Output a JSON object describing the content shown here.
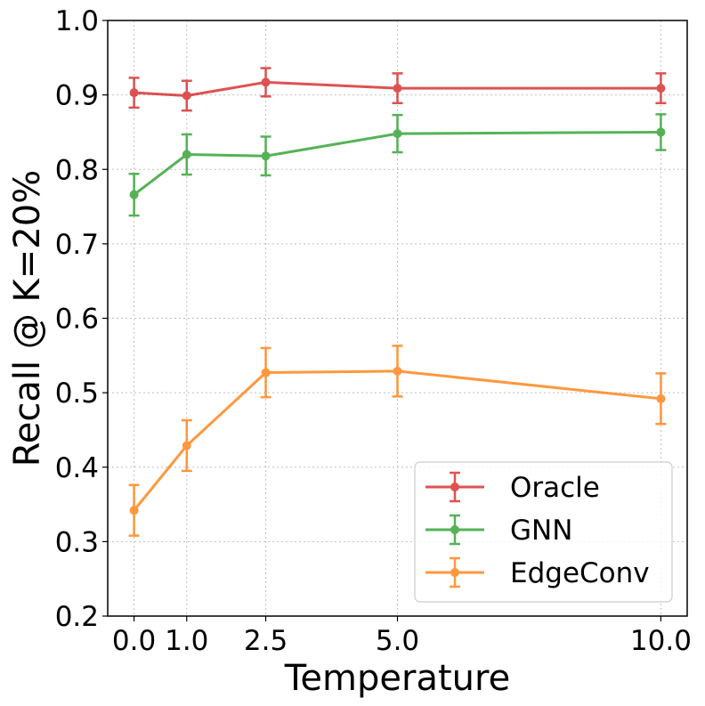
{
  "chart_data": {
    "type": "line",
    "title": "",
    "xlabel": "Temperature",
    "ylabel": "Recall @ K=20%",
    "x": [
      0.0,
      1.0,
      2.5,
      5.0,
      10.0
    ],
    "x_tick_labels": [
      "0.0",
      "1.0",
      "2.5",
      "5.0",
      "10.0"
    ],
    "xlim": [
      -0.5,
      10.5
    ],
    "ylim": [
      0.2,
      1.0
    ],
    "y_ticks": [
      0.2,
      0.3,
      0.4,
      0.5,
      0.6,
      0.7,
      0.8,
      0.9,
      1.0
    ],
    "y_tick_labels": [
      "0.2",
      "0.3",
      "0.4",
      "0.5",
      "0.6",
      "0.7",
      "0.8",
      "0.9",
      "1.0"
    ],
    "grid": true,
    "legend_position": "bottom-right",
    "series": [
      {
        "name": "Oracle",
        "color": "#d62728",
        "values": [
          0.903,
          0.899,
          0.917,
          0.909,
          0.909
        ],
        "errors": [
          0.02,
          0.02,
          0.019,
          0.02,
          0.02
        ]
      },
      {
        "name": "GNN",
        "color": "#2ca02c",
        "values": [
          0.766,
          0.82,
          0.818,
          0.848,
          0.85
        ],
        "errors": [
          0.028,
          0.027,
          0.026,
          0.025,
          0.024
        ]
      },
      {
        "name": "EdgeConv",
        "color": "#ff7f0e",
        "values": [
          0.342,
          0.429,
          0.527,
          0.529,
          0.492
        ],
        "errors": [
          0.034,
          0.034,
          0.033,
          0.034,
          0.034
        ]
      }
    ]
  }
}
